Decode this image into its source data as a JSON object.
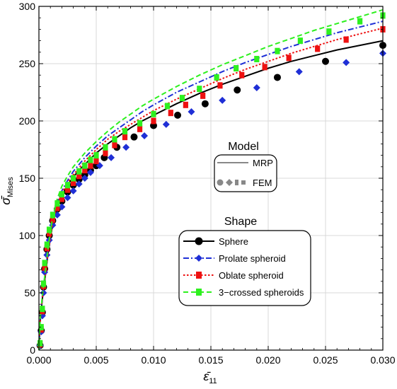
{
  "chart_data": {
    "type": "scatter",
    "xlabel": "ε̄₁₁",
    "ylabel": "σ̄Mises",
    "xlim": [
      0,
      0.03
    ],
    "ylim": [
      0,
      300
    ],
    "x_ticks": [
      "0.000",
      "0.005",
      "0.010",
      "0.015",
      "0.020",
      "0.025",
      "0.030"
    ],
    "y_ticks": [
      "0",
      "50",
      "100",
      "150",
      "200",
      "250",
      "300"
    ],
    "grid": true,
    "model_legend": {
      "title": "Model",
      "entries": [
        {
          "label": "MRP",
          "style": "line"
        },
        {
          "label": "FEM",
          "style": "markers"
        }
      ]
    },
    "shape_legend": {
      "title": "Shape",
      "entries": [
        {
          "label": "Sphere",
          "color": "#000000",
          "marker": "circle",
          "dash": "solid"
        },
        {
          "label": "Prolate spheroid",
          "color": "#1f2fd6",
          "marker": "diamond",
          "dash": "dashdot"
        },
        {
          "label": "Oblate spheroid",
          "color": "#ee1111",
          "marker": "square",
          "dash": "dotted"
        },
        {
          "label": "3−crossed spheroids",
          "color": "#2ef01f",
          "marker": "square",
          "dash": "dashed"
        }
      ]
    },
    "series": [
      {
        "name": "Sphere",
        "color": "#000000",
        "line": {
          "x": [
            0.0001,
            0.0003,
            0.0005,
            0.0008,
            0.0012,
            0.0016,
            0.002,
            0.0025,
            0.003,
            0.0035,
            0.004,
            0.005,
            0.006,
            0.007,
            0.008,
            0.009,
            0.01,
            0.012,
            0.014,
            0.016,
            0.018,
            0.02,
            0.022,
            0.024,
            0.026,
            0.028,
            0.03
          ],
          "y": [
            24,
            45,
            60,
            85,
            110,
            125,
            135,
            144,
            151,
            157,
            162,
            172,
            180,
            187,
            194,
            200,
            205,
            215,
            224,
            232,
            239,
            246,
            252,
            257,
            262,
            266,
            270
          ]
        },
        "markers": {
          "x": [
            0.0001,
            0.0002,
            0.0003,
            0.0004,
            0.0005,
            0.0007,
            0.0009,
            0.0012,
            0.0016,
            0.002,
            0.0025,
            0.003,
            0.0035,
            0.004,
            0.0045,
            0.005,
            0.0057,
            0.0068,
            0.0083,
            0.01,
            0.0121,
            0.0145,
            0.0173,
            0.0208,
            0.025,
            0.03
          ],
          "y": [
            4,
            17,
            33,
            55,
            71,
            88,
            100,
            113,
            123,
            130,
            138,
            144,
            149,
            153,
            157,
            161,
            168,
            177,
            186,
            196,
            205,
            215,
            227,
            238,
            252,
            266
          ]
        }
      },
      {
        "name": "Prolate spheroid",
        "color": "#1f2fd6",
        "line": {
          "x": [
            0.0001,
            0.0003,
            0.0005,
            0.0008,
            0.0012,
            0.0016,
            0.002,
            0.0025,
            0.003,
            0.0035,
            0.004,
            0.005,
            0.006,
            0.007,
            0.008,
            0.009,
            0.01,
            0.012,
            0.014,
            0.016,
            0.018,
            0.02,
            0.022,
            0.024,
            0.026,
            0.028,
            0.03
          ],
          "y": [
            25,
            47,
            63,
            88,
            113,
            129,
            139,
            148,
            156,
            162,
            168,
            178,
            187,
            194,
            201,
            208,
            214,
            225,
            234,
            243,
            251,
            258,
            265,
            271,
            277,
            282,
            287
          ]
        },
        "markers": {
          "x": [
            0.0001,
            0.0002,
            0.0003,
            0.0004,
            0.0005,
            0.0007,
            0.0009,
            0.0012,
            0.0016,
            0.002,
            0.0025,
            0.003,
            0.0035,
            0.004,
            0.0045,
            0.0053,
            0.0063,
            0.0076,
            0.0092,
            0.0111,
            0.0133,
            0.016,
            0.019,
            0.0227,
            0.0268,
            0.03
          ],
          "y": [
            4,
            16,
            30,
            50,
            68,
            83,
            96,
            109,
            118,
            125,
            133,
            139,
            145,
            150,
            155,
            161,
            168,
            177,
            187,
            197,
            208,
            218,
            229,
            243,
            251,
            259
          ]
        }
      },
      {
        "name": "Oblate spheroid",
        "color": "#ee1111",
        "line": {
          "x": [
            0.0001,
            0.0003,
            0.0005,
            0.0008,
            0.0012,
            0.0016,
            0.002,
            0.0025,
            0.003,
            0.0035,
            0.004,
            0.005,
            0.006,
            0.007,
            0.008,
            0.009,
            0.01,
            0.012,
            0.014,
            0.016,
            0.018,
            0.02,
            0.022,
            0.024,
            0.026,
            0.028,
            0.03
          ],
          "y": [
            24,
            46,
            61,
            86,
            111,
            127,
            137,
            146,
            153,
            159,
            165,
            175,
            184,
            191,
            197,
            203,
            209,
            219,
            228,
            237,
            245,
            252,
            259,
            265,
            271,
            276,
            281
          ]
        },
        "markers": {
          "x": [
            0.0001,
            0.0002,
            0.0003,
            0.0004,
            0.0005,
            0.0007,
            0.0009,
            0.0012,
            0.0016,
            0.002,
            0.0025,
            0.003,
            0.0035,
            0.004,
            0.0045,
            0.005,
            0.0058,
            0.0066,
            0.0075,
            0.0088,
            0.01,
            0.0115,
            0.0128,
            0.0143,
            0.0158,
            0.0177,
            0.0197,
            0.0218,
            0.0243,
            0.0268,
            0.03
          ],
          "y": [
            5,
            18,
            34,
            56,
            72,
            89,
            102,
            114,
            124,
            132,
            140,
            146,
            152,
            157,
            161,
            165,
            172,
            179,
            186,
            193,
            200,
            207,
            214,
            222,
            231,
            240,
            247,
            255,
            263,
            271,
            280
          ]
        }
      },
      {
        "name": "3−crossed spheroids",
        "color": "#2ef01f",
        "line": {
          "x": [
            0.0001,
            0.0003,
            0.0005,
            0.0008,
            0.0012,
            0.0016,
            0.002,
            0.0025,
            0.003,
            0.0035,
            0.004,
            0.005,
            0.006,
            0.007,
            0.008,
            0.009,
            0.01,
            0.012,
            0.014,
            0.016,
            0.018,
            0.02,
            0.022,
            0.024,
            0.026,
            0.028,
            0.03
          ],
          "y": [
            26,
            48,
            64,
            90,
            116,
            132,
            143,
            152,
            160,
            166,
            172,
            182,
            191,
            199,
            206,
            213,
            219,
            230,
            240,
            249,
            257,
            265,
            272,
            279,
            285,
            291,
            297
          ]
        },
        "markers": {
          "x": [
            0.0001,
            0.0002,
            0.0003,
            0.0004,
            0.0005,
            0.0007,
            0.0009,
            0.0012,
            0.0016,
            0.002,
            0.0025,
            0.003,
            0.0035,
            0.004,
            0.0045,
            0.005,
            0.0058,
            0.0066,
            0.0075,
            0.0088,
            0.01,
            0.0112,
            0.0125,
            0.014,
            0.0155,
            0.0172,
            0.019,
            0.0208,
            0.0228,
            0.0253,
            0.028,
            0.03
          ],
          "y": [
            6,
            20,
            36,
            58,
            76,
            92,
            105,
            118,
            128,
            136,
            144,
            150,
            156,
            161,
            166,
            170,
            177,
            184,
            191,
            198,
            206,
            213,
            220,
            228,
            238,
            246,
            254,
            261,
            270,
            278,
            287,
            292
          ]
        }
      }
    ]
  }
}
